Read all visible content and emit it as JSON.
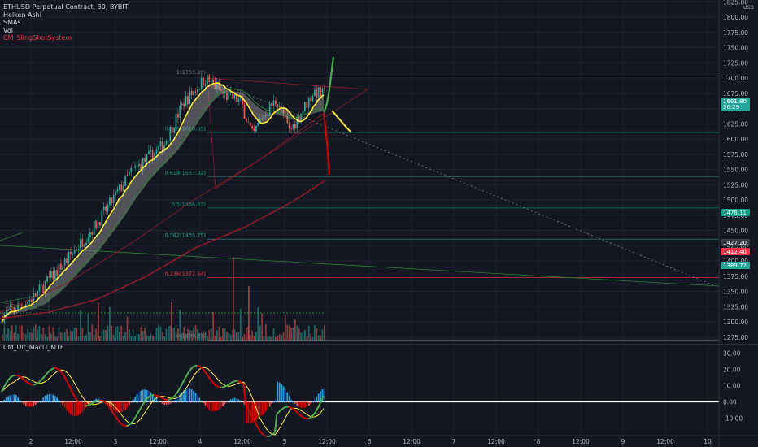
{
  "legend": {
    "symbol": "ETHUSD Perpetual Contract, 30, BYBIT",
    "items": [
      "Heiken Ashi",
      "SMAs",
      "Vol",
      "CM_SlingShotSystem"
    ]
  },
  "oscillator": {
    "title": "CM_Ult_MacD_MTF"
  },
  "price_axis": {
    "currency": "USD",
    "ticks": [
      "1825.00",
      "1800.00",
      "1775.00",
      "1750.00",
      "1725.00",
      "1700.00",
      "1675.00",
      "1650.00",
      "1625.00",
      "1600.00",
      "1575.00",
      "1550.00",
      "1525.00",
      "1500.00",
      "1475.00",
      "1450.00",
      "1425.00",
      "1400.00",
      "1375.00",
      "1350.00",
      "1325.00",
      "1300.00",
      "1275.00"
    ],
    "badges": [
      {
        "text": "1661.80",
        "color": "#26a69a"
      },
      {
        "text": "20:29",
        "color": "#26a69a"
      },
      {
        "text": "1478.11",
        "color": "#089981"
      },
      {
        "text": "1427.20",
        "color": "#363a45"
      },
      {
        "text": "1412.40",
        "color": "#f23645"
      },
      {
        "text": "1389.72",
        "color": "#26a69a"
      }
    ]
  },
  "osc_axis": {
    "ticks": [
      "30.00",
      "20.00",
      "10.00",
      "0.00",
      "-10.00"
    ]
  },
  "time_axis": {
    "labels": [
      "2",
      "12:00",
      "3",
      "12:00",
      "4",
      "12:00",
      "5",
      "12:00",
      "6",
      "12:00",
      "7",
      "12:00",
      "8",
      "12:00",
      "9",
      "12:00",
      "10"
    ]
  },
  "fib_labels": [
    "1(1703.30)",
    "0.786(1610.65)",
    "0.618(1537.92)",
    "0.5(1486.83)",
    "0.382(1435.75)",
    "0.236(1372.54)",
    "0(1270.37)"
  ],
  "colors": {
    "up": "#26a69a",
    "down": "#ef5350",
    "sma_fast": "#ffeb3b",
    "sma_slow": "#8b1a2b",
    "ribbon": "#9e9e9e"
  },
  "chart_data": {
    "type": "candlestick",
    "symbol": "ETHUSD",
    "timeframe": "30",
    "price_range": [
      1265,
      1832
    ],
    "fib_levels": [
      {
        "ratio": "1",
        "price": 1703.3
      },
      {
        "ratio": "0.786",
        "price": 1610.65
      },
      {
        "ratio": "0.618",
        "price": 1537.92
      },
      {
        "ratio": "0.5",
        "price": 1486.83
      },
      {
        "ratio": "0.382",
        "price": 1435.75
      },
      {
        "ratio": "0.236",
        "price": 1372.54
      },
      {
        "ratio": "0",
        "price": 1270.37
      }
    ],
    "last_price": 1661.8,
    "macd_range": [
      -15,
      35
    ]
  }
}
